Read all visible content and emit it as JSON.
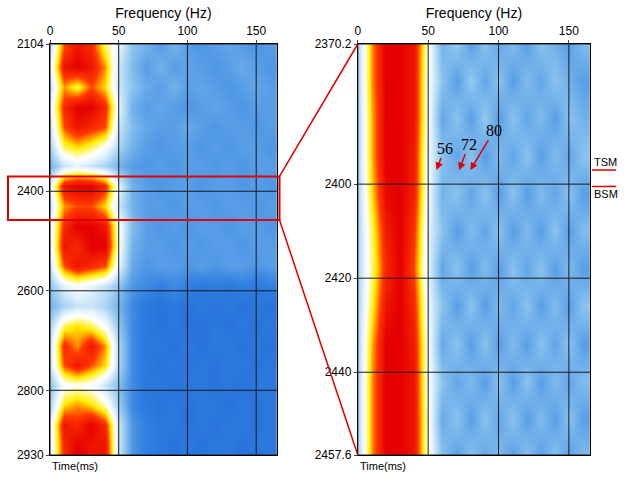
{
  "chart_data": [
    {
      "type": "heatmap",
      "x_label": "Frequency (Hz)",
      "y_label": "Time(ms)",
      "x": [
        0,
        10,
        20,
        30,
        40,
        50,
        60,
        70,
        80,
        90,
        100,
        110,
        120,
        130,
        140,
        150,
        160
      ],
      "y": [
        2110,
        2150,
        2190,
        2230,
        2270,
        2310,
        2350,
        2390,
        2430,
        2470,
        2510,
        2550,
        2590,
        2630,
        2670,
        2710,
        2750,
        2790,
        2830,
        2870,
        2910
      ],
      "z": [
        [
          0.5,
          0.85,
          0.95,
          0.9,
          0.7,
          0.55,
          0.4,
          0.35,
          0.3,
          0.35,
          0.3,
          0.28,
          0.3,
          0.32,
          0.3,
          0.28,
          0.3
        ],
        [
          0.55,
          0.95,
          1.0,
          0.95,
          0.8,
          0.5,
          0.38,
          0.3,
          0.35,
          0.3,
          0.32,
          0.3,
          0.28,
          0.3,
          0.33,
          0.3,
          0.28
        ],
        [
          0.5,
          0.8,
          0.7,
          0.85,
          0.75,
          0.5,
          0.4,
          0.33,
          0.3,
          0.35,
          0.3,
          0.32,
          0.3,
          0.28,
          0.3,
          0.32,
          0.3
        ],
        [
          0.55,
          0.9,
          1.0,
          1.0,
          0.9,
          0.55,
          0.35,
          0.3,
          0.32,
          0.3,
          0.28,
          0.3,
          0.32,
          0.3,
          0.28,
          0.3,
          0.3
        ],
        [
          0.5,
          0.85,
          0.95,
          0.9,
          0.85,
          0.5,
          0.38,
          0.32,
          0.3,
          0.3,
          0.33,
          0.3,
          0.28,
          0.3,
          0.3,
          0.28,
          0.3
        ],
        [
          0.45,
          0.7,
          0.75,
          0.7,
          0.6,
          0.45,
          0.35,
          0.3,
          0.28,
          0.3,
          0.3,
          0.28,
          0.3,
          0.28,
          0.3,
          0.3,
          0.28
        ],
        [
          0.35,
          0.5,
          0.55,
          0.5,
          0.45,
          0.35,
          0.3,
          0.28,
          0.3,
          0.28,
          0.3,
          0.3,
          0.28,
          0.3,
          0.28,
          0.3,
          0.3
        ],
        [
          0.55,
          0.95,
          1.0,
          1.0,
          0.9,
          0.55,
          0.35,
          0.3,
          0.28,
          0.3,
          0.3,
          0.28,
          0.3,
          0.3,
          0.28,
          0.3,
          0.28
        ],
        [
          0.5,
          0.8,
          0.85,
          0.85,
          0.75,
          0.5,
          0.35,
          0.3,
          0.3,
          0.28,
          0.3,
          0.3,
          0.28,
          0.3,
          0.3,
          0.28,
          0.3
        ],
        [
          0.55,
          0.9,
          1.0,
          1.0,
          0.95,
          0.6,
          0.38,
          0.3,
          0.28,
          0.3,
          0.28,
          0.3,
          0.3,
          0.28,
          0.3,
          0.3,
          0.28
        ],
        [
          0.55,
          0.95,
          0.9,
          1.0,
          1.0,
          0.6,
          0.35,
          0.3,
          0.3,
          0.28,
          0.3,
          0.28,
          0.3,
          0.3,
          0.28,
          0.3,
          0.3
        ],
        [
          0.5,
          0.85,
          0.95,
          0.9,
          0.85,
          0.55,
          0.33,
          0.28,
          0.3,
          0.3,
          0.28,
          0.3,
          0.28,
          0.3,
          0.3,
          0.28,
          0.3
        ],
        [
          0.4,
          0.55,
          0.6,
          0.55,
          0.5,
          0.4,
          0.28,
          0.25,
          0.22,
          0.25,
          0.22,
          0.2,
          0.22,
          0.2,
          0.22,
          0.2,
          0.22
        ],
        [
          0.35,
          0.45,
          0.5,
          0.5,
          0.45,
          0.35,
          0.25,
          0.2,
          0.18,
          0.2,
          0.18,
          0.2,
          0.18,
          0.2,
          0.18,
          0.2,
          0.18
        ],
        [
          0.45,
          0.7,
          0.75,
          0.7,
          0.6,
          0.4,
          0.25,
          0.2,
          0.18,
          0.2,
          0.18,
          0.18,
          0.2,
          0.18,
          0.2,
          0.18,
          0.2
        ],
        [
          0.5,
          0.9,
          0.8,
          0.95,
          0.8,
          0.45,
          0.25,
          0.2,
          0.2,
          0.18,
          0.2,
          0.18,
          0.2,
          0.2,
          0.18,
          0.2,
          0.18
        ],
        [
          0.5,
          0.85,
          0.95,
          0.85,
          0.75,
          0.45,
          0.25,
          0.2,
          0.18,
          0.2,
          0.18,
          0.2,
          0.18,
          0.2,
          0.2,
          0.18,
          0.2
        ],
        [
          0.4,
          0.6,
          0.62,
          0.6,
          0.5,
          0.38,
          0.25,
          0.2,
          0.2,
          0.18,
          0.2,
          0.2,
          0.18,
          0.2,
          0.18,
          0.2,
          0.2
        ],
        [
          0.45,
          0.75,
          0.8,
          0.75,
          0.65,
          0.42,
          0.25,
          0.2,
          0.18,
          0.2,
          0.18,
          0.2,
          0.2,
          0.18,
          0.2,
          0.18,
          0.2
        ],
        [
          0.55,
          0.95,
          0.9,
          1.0,
          0.9,
          0.5,
          0.28,
          0.22,
          0.2,
          0.2,
          0.18,
          0.2,
          0.18,
          0.2,
          0.2,
          0.18,
          0.2
        ],
        [
          0.55,
          0.9,
          1.0,
          0.95,
          0.95,
          0.5,
          0.28,
          0.22,
          0.2,
          0.18,
          0.2,
          0.18,
          0.2,
          0.2,
          0.18,
          0.2,
          0.2
        ]
      ],
      "zlim": [
        0,
        1
      ],
      "xlim": [
        0,
        165
      ],
      "xticks": [
        0,
        50,
        100,
        150
      ],
      "ylim": [
        2930,
        2104
      ],
      "yticks": [
        2104,
        2400,
        2600,
        2800,
        2930
      ],
      "grid": true
    },
    {
      "type": "heatmap",
      "x_label": "Frequency (Hz)",
      "y_label": "Time(ms)",
      "x": [
        0,
        10,
        20,
        30,
        40,
        50,
        60,
        70,
        80,
        90,
        100,
        110,
        120,
        130,
        140,
        150,
        160
      ],
      "y": [
        2370,
        2378,
        2386,
        2394,
        2402,
        2410,
        2418,
        2426,
        2434,
        2442,
        2450,
        2458
      ],
      "z": [
        [
          0.45,
          0.8,
          1.0,
          1.0,
          0.95,
          0.62,
          0.35,
          0.42,
          0.3,
          0.4,
          0.32,
          0.38,
          0.3,
          0.4,
          0.35,
          0.3,
          0.38
        ],
        [
          0.45,
          0.8,
          1.0,
          1.0,
          0.95,
          0.6,
          0.4,
          0.3,
          0.42,
          0.32,
          0.4,
          0.3,
          0.38,
          0.32,
          0.4,
          0.35,
          0.3
        ],
        [
          0.45,
          0.78,
          1.0,
          1.0,
          0.95,
          0.6,
          0.32,
          0.4,
          0.3,
          0.42,
          0.3,
          0.4,
          0.32,
          0.38,
          0.3,
          0.4,
          0.35
        ],
        [
          0.45,
          0.78,
          1.0,
          1.0,
          0.93,
          0.58,
          0.4,
          0.32,
          0.4,
          0.3,
          0.38,
          0.32,
          0.4,
          0.3,
          0.38,
          0.32,
          0.4
        ],
        [
          0.45,
          0.75,
          0.98,
          1.0,
          0.92,
          0.58,
          0.35,
          0.4,
          0.32,
          0.4,
          0.3,
          0.4,
          0.3,
          0.38,
          0.32,
          0.4,
          0.3
        ],
        [
          0.45,
          0.7,
          0.93,
          1.0,
          0.88,
          0.55,
          0.4,
          0.3,
          0.38,
          0.32,
          0.4,
          0.3,
          0.38,
          0.3,
          0.4,
          0.3,
          0.38
        ],
        [
          0.45,
          0.68,
          0.9,
          1.0,
          0.85,
          0.55,
          0.32,
          0.4,
          0.3,
          0.38,
          0.3,
          0.4,
          0.32,
          0.4,
          0.3,
          0.38,
          0.3
        ],
        [
          0.45,
          0.72,
          0.95,
          1.0,
          0.9,
          0.57,
          0.4,
          0.3,
          0.4,
          0.3,
          0.38,
          0.32,
          0.4,
          0.3,
          0.38,
          0.3,
          0.4
        ],
        [
          0.45,
          0.78,
          1.0,
          1.0,
          0.93,
          0.6,
          0.33,
          0.4,
          0.3,
          0.4,
          0.3,
          0.38,
          0.3,
          0.4,
          0.32,
          0.4,
          0.3
        ],
        [
          0.45,
          0.8,
          1.0,
          1.0,
          0.95,
          0.6,
          0.4,
          0.32,
          0.38,
          0.3,
          0.4,
          0.3,
          0.4,
          0.3,
          0.38,
          0.32,
          0.38
        ],
        [
          0.45,
          0.8,
          1.0,
          1.0,
          0.95,
          0.62,
          0.33,
          0.4,
          0.3,
          0.4,
          0.32,
          0.4,
          0.3,
          0.38,
          0.3,
          0.4,
          0.3
        ],
        [
          0.45,
          0.8,
          1.0,
          1.0,
          0.95,
          0.62,
          0.4,
          0.3,
          0.4,
          0.32,
          0.38,
          0.3,
          0.4,
          0.3,
          0.4,
          0.3,
          0.38
        ]
      ],
      "zlim": [
        0,
        1
      ],
      "xlim": [
        0,
        165
      ],
      "xticks": [
        0,
        50,
        100,
        150
      ],
      "ylim": [
        2457.6,
        2370.2
      ],
      "yticks": [
        2370.2,
        2400,
        2420,
        2440,
        2457.6
      ],
      "grid": true,
      "annotations": [
        {
          "text": "56",
          "x": 56,
          "y": 2397
        },
        {
          "text": "72",
          "x": 72,
          "y": 2397
        },
        {
          "text": "80",
          "x": 80,
          "y": 2397
        }
      ],
      "horizons": [
        {
          "text": "TSM",
          "y": 2397
        },
        {
          "text": "BSM",
          "y": 2400.5
        }
      ]
    }
  ]
}
